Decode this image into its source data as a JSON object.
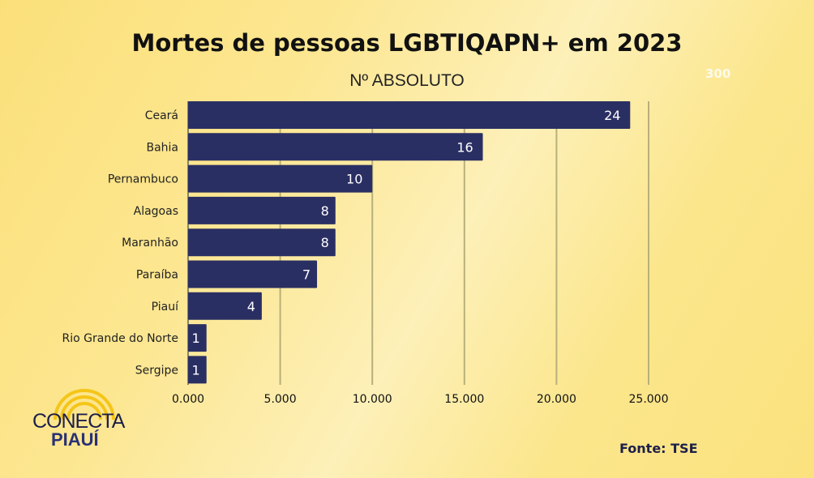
{
  "chart_data": {
    "type": "bar",
    "orientation": "horizontal",
    "title": "Mortes de pessoas LGBTIQAPN+ em 2023",
    "subtitle": "Nº ABSOLUTO",
    "categories": [
      "Ceará",
      "Bahia",
      "Pernambuco",
      "Alagoas",
      "Maranhão",
      "Paraíba",
      "Piauí",
      "Rio Grande do Norte",
      "Sergipe"
    ],
    "values": [
      24,
      16,
      10,
      8,
      8,
      7,
      4,
      1,
      1
    ],
    "xticks": [
      0,
      5,
      10,
      15,
      20,
      25
    ],
    "xtick_labels": [
      "0.000",
      "5.000",
      "10.000",
      "15.000",
      "20.000",
      "25.000"
    ],
    "xlim": [
      0,
      25
    ],
    "grid": true,
    "bar_color": "#2a2f63"
  },
  "stray_label": "300",
  "source": "Fonte: TSE",
  "logo": {
    "line1": "CONECTA",
    "line2": "PIAUÍ"
  }
}
